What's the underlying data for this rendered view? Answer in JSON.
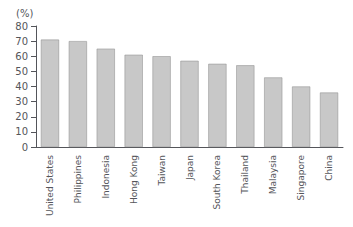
{
  "chart_data": {
    "type": "bar",
    "ylabel": "(%)",
    "categories": [
      "United States",
      "Philippines",
      "Indonesia",
      "Hong Kong",
      "Taiwan",
      "Japan",
      "South Korea",
      "Thailand",
      "Malaysia",
      "Singapore",
      "China"
    ],
    "values": [
      71,
      70,
      65,
      61,
      60,
      57,
      55,
      54,
      46,
      40,
      36
    ],
    "color": "#c8c8c8",
    "ylim": [
      0,
      80
    ],
    "yticks": [
      0,
      10,
      20,
      30,
      40,
      50,
      60,
      70,
      80
    ],
    "grid": false
  }
}
